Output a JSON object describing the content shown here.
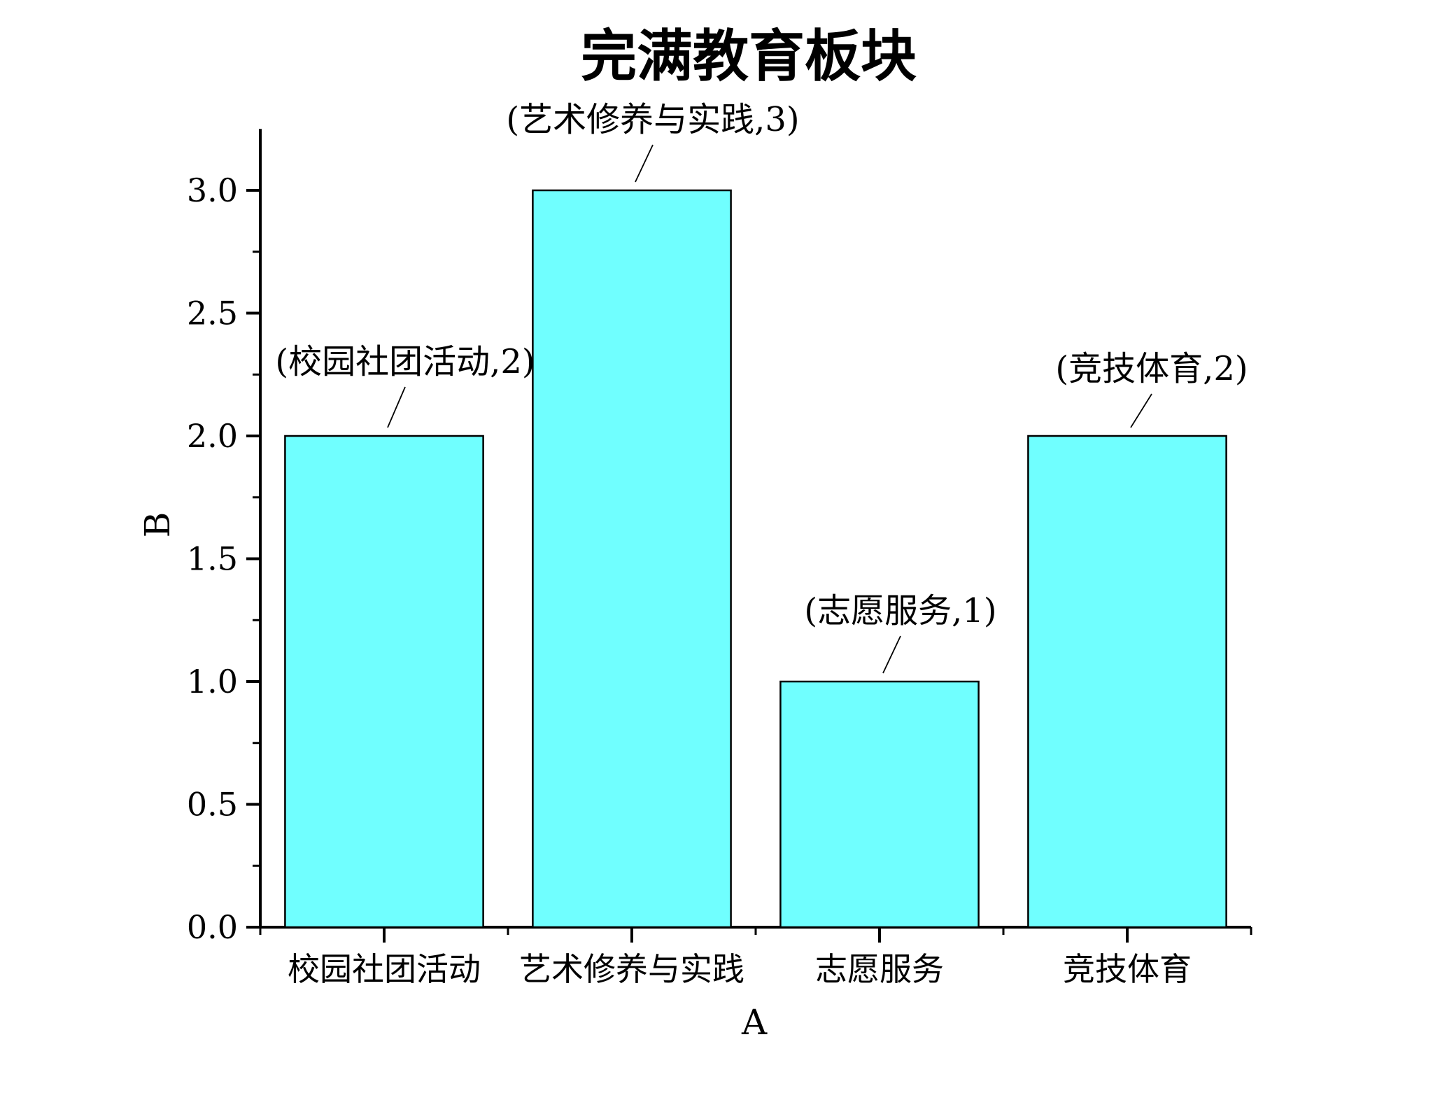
{
  "chart_data": {
    "type": "bar",
    "title": "完满教育板块",
    "xlabel": "A",
    "ylabel": "B",
    "categories": [
      "校园社团活动",
      "艺术修养与实践",
      "志愿服务",
      "竞技体育"
    ],
    "values": [
      2,
      3,
      1,
      2
    ],
    "data_labels": [
      "(校园社团活动,2)",
      "(艺术修养与实践,3)",
      "(志愿服务,1)",
      "(竞技体育,2)"
    ],
    "ylim": [
      0,
      3.25
    ],
    "yticks": [
      0,
      0.5,
      1,
      1.5,
      2,
      2.5,
      3
    ],
    "ytick_labels": [
      "0.0",
      "0.5",
      "1.0",
      "1.5",
      "2.0",
      "2.5",
      "3.0"
    ],
    "grid": false,
    "colors": {
      "bar_fill": "#70FFFF",
      "bar_stroke": "#000000"
    }
  }
}
